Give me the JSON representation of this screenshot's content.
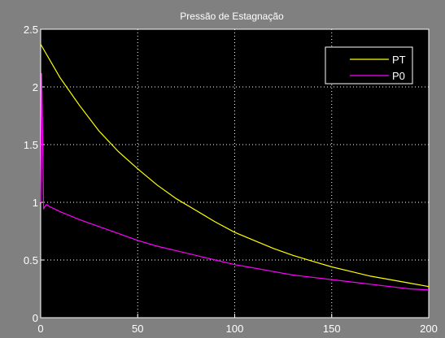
{
  "chart_data": {
    "type": "line",
    "title": "Pressão de Estagnação",
    "xlabel": "",
    "ylabel": "",
    "xlim": [
      0,
      200
    ],
    "ylim": [
      0,
      2.5
    ],
    "x_ticks": [
      0,
      50,
      100,
      150,
      200
    ],
    "y_ticks": [
      0,
      0.5,
      1,
      1.5,
      2,
      2.5
    ],
    "x_tick_labels": [
      "0",
      "50",
      "100",
      "150",
      "200"
    ],
    "y_tick_labels": [
      "0",
      "0.5",
      "1",
      "1.5",
      "2",
      "2.5"
    ],
    "grid": true,
    "legend_position": "top-right",
    "series": [
      {
        "name": "PT",
        "color": "#ffff00",
        "x": [
          0,
          10,
          20,
          30,
          40,
          50,
          60,
          70,
          80,
          90,
          100,
          110,
          120,
          130,
          140,
          150,
          160,
          170,
          180,
          190,
          200
        ],
        "y": [
          2.37,
          2.08,
          1.84,
          1.62,
          1.44,
          1.29,
          1.15,
          1.03,
          0.93,
          0.83,
          0.74,
          0.67,
          0.6,
          0.54,
          0.49,
          0.44,
          0.4,
          0.36,
          0.33,
          0.3,
          0.27
        ]
      },
      {
        "name": "P0",
        "color": "#ff00ff",
        "x": [
          0,
          0.5,
          1,
          1.5,
          2,
          3,
          5,
          10,
          20,
          30,
          40,
          50,
          60,
          70,
          80,
          90,
          100,
          110,
          120,
          130,
          140,
          150,
          160,
          170,
          180,
          190,
          200
        ],
        "y": [
          1.0,
          2.12,
          1.6,
          0.94,
          0.96,
          0.98,
          0.96,
          0.92,
          0.85,
          0.79,
          0.73,
          0.67,
          0.62,
          0.58,
          0.54,
          0.5,
          0.46,
          0.43,
          0.4,
          0.37,
          0.35,
          0.33,
          0.31,
          0.29,
          0.27,
          0.25,
          0.24
        ]
      }
    ]
  }
}
